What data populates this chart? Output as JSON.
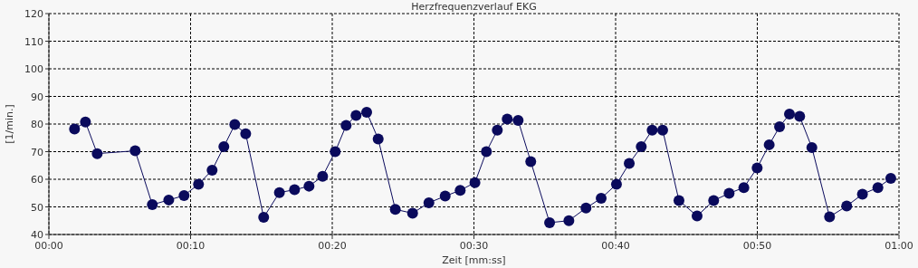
{
  "chart_data": {
    "type": "line",
    "title": "Herzfrequenzverlauf EKG",
    "xlabel": "Zeit [mm:ss]",
    "ylabel": "[1/min.]",
    "xlim": [
      0,
      60
    ],
    "xticks": [
      {
        "value": 0,
        "label": "00:00"
      },
      {
        "value": 10,
        "label": "00:10"
      },
      {
        "value": 20,
        "label": "00:20"
      },
      {
        "value": 30,
        "label": "00:30"
      },
      {
        "value": 40,
        "label": "00:40"
      },
      {
        "value": 50,
        "label": "00:50"
      },
      {
        "value": 60,
        "label": "01:00"
      }
    ],
    "ylim": [
      40,
      120
    ],
    "yticks": [
      40,
      50,
      60,
      70,
      80,
      90,
      100,
      110,
      120
    ],
    "grid": true,
    "marker": "circle",
    "line_style": "solid",
    "series": [
      {
        "color": "#0a0a5c",
        "x": [
          1.81,
          2.58,
          3.41,
          6.09,
          7.3,
          8.46,
          9.54,
          10.56,
          11.52,
          12.35,
          13.12,
          13.89,
          15.16,
          16.27,
          17.34,
          18.36,
          19.32,
          20.21,
          20.98,
          21.68,
          22.43,
          23.24,
          24.45,
          25.67,
          26.82,
          27.97,
          29.03,
          30.07,
          30.88,
          31.65,
          32.35,
          33.12,
          34.01,
          35.34,
          36.7,
          37.91,
          38.98,
          40.06,
          40.96,
          41.81,
          42.58,
          43.32,
          44.47,
          45.75,
          46.92,
          48.01,
          49.05,
          49.99,
          50.84,
          51.57,
          52.27,
          52.99,
          53.85,
          55.1,
          56.31,
          57.42,
          58.51,
          59.42
        ],
        "values": [
          78.2,
          80.7,
          69.3,
          70.3,
          50.8,
          52.5,
          54.1,
          58.2,
          63.3,
          71.8,
          79.8,
          76.5,
          46.2,
          55.2,
          56.2,
          57.5,
          61.1,
          70.0,
          79.5,
          83.1,
          84.3,
          74.6,
          49.1,
          47.7,
          51.5,
          53.9,
          56.0,
          58.8,
          70.0,
          77.8,
          81.8,
          81.3,
          66.4,
          44.3,
          45.0,
          49.6,
          53.1,
          58.2,
          65.7,
          71.8,
          77.8,
          77.8,
          52.3,
          46.7,
          52.3,
          54.9,
          57.0,
          64.1,
          72.5,
          79.0,
          83.6,
          82.8,
          71.5,
          46.4,
          50.3,
          54.6,
          57.0,
          60.3
        ]
      }
    ]
  }
}
